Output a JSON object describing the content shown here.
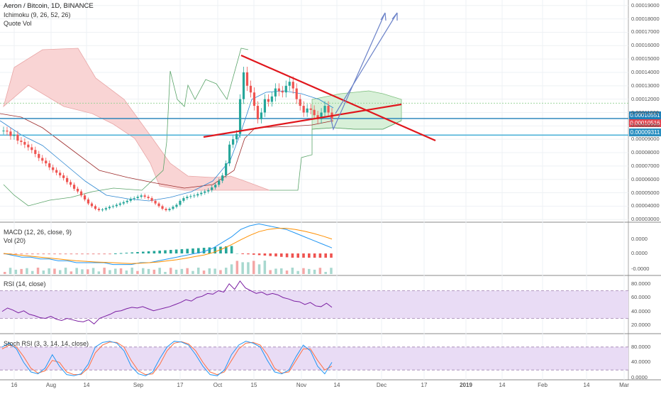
{
  "header": {
    "title": "Aeron / Bitcoin, 1D, BINANCE",
    "indicator_ichimoku": "Ichimoku (9, 26, 52, 26)",
    "indicator_quote_vol": "Quote Vol"
  },
  "panes": {
    "macd_label": "MACD (12, 26, close, 9)",
    "vol_label": "Vol (20)",
    "rsi_label": "RSI (14, close)",
    "stoch_label": "Stoch RSI (3, 3, 14, 14, close)"
  },
  "price_tags": [
    {
      "text": "0.00010551",
      "color": "#1e7fb8"
    },
    {
      "text": "0.00010516",
      "color": "#e04550"
    },
    {
      "text": "0.00009311",
      "color": "#2a8fc0"
    }
  ],
  "colors": {
    "up": "#26a69a",
    "down": "#ef5350",
    "trendline": "#e0161c",
    "projection": "#6b82c8",
    "rsi_line": "#7b1fa2",
    "rsi_band": "#e9dcf5",
    "cloud_bear": "#f9d4d4",
    "cloud_bull": "#d8f0d8"
  },
  "chart_data": [
    {
      "type": "candlestick",
      "pane": "price",
      "title": "Aeron / Bitcoin, 1D, BINANCE",
      "y_ticks": [
        "0.00019000",
        "0.00018000",
        "0.00017000",
        "0.00016000",
        "0.00015000",
        "0.00014000",
        "0.00013000",
        "0.00012000",
        "0.00011000",
        "0.00010000",
        "0.00009000",
        "0.00008000",
        "0.00007000",
        "0.00006000",
        "0.00005000",
        "0.00004000",
        "0.00003000"
      ],
      "ylim": [
        2.8e-05,
        0.000192
      ],
      "close_series": [
        9.65e-05,
        9.58e-05,
        9.25e-05,
        9.35e-05,
        8.9e-05,
        8.8e-05,
        8.6e-05,
        8.4e-05,
        8.2e-05,
        7.9e-05,
        7.6e-05,
        7.4e-05,
        7.2e-05,
        6.9e-05,
        6.7e-05,
        6.5e-05,
        6.3e-05,
        6.1e-05,
        5.8e-05,
        5.6e-05,
        5.3e-05,
        5.1e-05,
        4.8e-05,
        4.5e-05,
        4.2e-05,
        4e-05,
        3.8e-05,
        3.7e-05,
        3.75e-05,
        3.85e-05,
        3.95e-05,
        4e-05,
        4.1e-05,
        4.2e-05,
        4.3e-05,
        4.4e-05,
        4.55e-05,
        4.6e-05,
        4.7e-05,
        4.8e-05,
        4.7e-05,
        4.6e-05,
        4.4e-05,
        4.2e-05,
        4e-05,
        3.8e-05,
        3.7e-05,
        3.8e-05,
        3.95e-05,
        4.1e-05,
        4.4e-05,
        4.6e-05,
        4.7e-05,
        4.75e-05,
        4.8e-05,
        4.9e-05,
        5e-05,
        5.1e-05,
        5.2e-05,
        5.4e-05,
        5.6e-05,
        5.9e-05,
        6.3e-05,
        7.2e-05,
        8.6e-05,
        9e-05,
        9.4e-05,
        0.00012,
        0.00014,
        0.00013,
        0.000125,
        0.000115,
        0.000105,
        0.00011,
        0.00012,
        0.000118,
        0.000122,
        0.000128,
        0.000126,
        0.000125,
        0.00013,
        0.000133,
        0.000128,
        0.00012,
        0.000115,
        0.00011,
        0.000113,
        0.000112,
        0.000108,
        0.000105,
        0.00011,
        0.000115,
        0.00011,
        0.0001052
      ],
      "horizontal_levels": [
        0.00010551,
        9.311e-05
      ],
      "last_price": 0.00010516
    },
    {
      "type": "line",
      "pane": "macd",
      "title": "MACD (12, 26, close, 9)",
      "y_ticks": [
        "0.0000",
        "0.0000",
        "-0.0000"
      ],
      "series": [
        {
          "name": "MACD",
          "values": [
            0,
            -1,
            -2,
            -2,
            -3,
            -3,
            -4,
            -4,
            -5,
            -5,
            -5,
            -5,
            -6,
            -6,
            -6,
            -5,
            -5,
            -4,
            -3,
            -2,
            -1,
            0,
            1,
            3,
            6,
            9,
            13,
            15,
            16,
            15,
            14,
            13,
            11,
            9,
            7,
            5,
            3
          ]
        },
        {
          "name": "Signal",
          "values": [
            0,
            -0.5,
            -1,
            -1.5,
            -2,
            -2.5,
            -3,
            -3.5,
            -4,
            -4.3,
            -4.6,
            -4.8,
            -5,
            -5.3,
            -5.5,
            -5.3,
            -5,
            -4.6,
            -4,
            -3.4,
            -2.6,
            -1.7,
            -0.8,
            0.5,
            2.5,
            4.8,
            7.4,
            9.8,
            11.8,
            13,
            13.6,
            13.6,
            13,
            12,
            10.8,
            9.4,
            7.8
          ]
        }
      ]
    },
    {
      "type": "line",
      "pane": "rsi",
      "title": "RSI (14, close)",
      "y_ticks": [
        "80.0000",
        "60.0000",
        "40.0000",
        "20.0000"
      ],
      "ylim": [
        10,
        90
      ],
      "series": [
        {
          "name": "RSI",
          "values": [
            40,
            45,
            42,
            38,
            41,
            36,
            34,
            31,
            30,
            33,
            29,
            27,
            30,
            28,
            26,
            25,
            28,
            22,
            30,
            33,
            36,
            40,
            41,
            44,
            46,
            45,
            47,
            44,
            41,
            43,
            45,
            47,
            50,
            53,
            57,
            55,
            60,
            62,
            66,
            65,
            70,
            68,
            80,
            72,
            84,
            74,
            70,
            66,
            68,
            64,
            66,
            64,
            60,
            58,
            55,
            54,
            50,
            53,
            48,
            47,
            52,
            46
          ]
        }
      ],
      "band": [
        30,
        70
      ]
    },
    {
      "type": "line",
      "pane": "stoch_rsi",
      "title": "Stoch RSI (3, 3, 14, 14, close)",
      "y_ticks": [
        "80.0000",
        "40.0000",
        "0.0000"
      ],
      "ylim": [
        0,
        100
      ],
      "series": [
        {
          "name": "K",
          "values": [
            80,
            90,
            75,
            40,
            15,
            10,
            25,
            60,
            30,
            8,
            5,
            10,
            35,
            80,
            92,
            95,
            90,
            70,
            30,
            10,
            5,
            15,
            50,
            80,
            95,
            93,
            85,
            60,
            30,
            8,
            5,
            20,
            60,
            85,
            95,
            90,
            80,
            45,
            15,
            10,
            20,
            55,
            85,
            70,
            30,
            10,
            40
          ]
        },
        {
          "name": "D",
          "values": [
            75,
            85,
            80,
            55,
            25,
            12,
            18,
            45,
            40,
            15,
            8,
            8,
            25,
            65,
            85,
            93,
            92,
            80,
            45,
            18,
            8,
            10,
            35,
            70,
            90,
            94,
            88,
            70,
            40,
            15,
            8,
            15,
            45,
            75,
            90,
            92,
            85,
            60,
            25,
            12,
            15,
            45,
            75,
            75,
            45,
            20,
            30
          ]
        }
      ],
      "band": [
        20,
        80
      ]
    }
  ],
  "x_axis": {
    "ticks": [
      "16",
      "Aug",
      "14",
      "Sep",
      "17",
      "Oct",
      "15",
      "Nov",
      "14",
      "Dec",
      "17",
      "2019",
      "14",
      "Feb",
      "14",
      "Mar"
    ]
  }
}
